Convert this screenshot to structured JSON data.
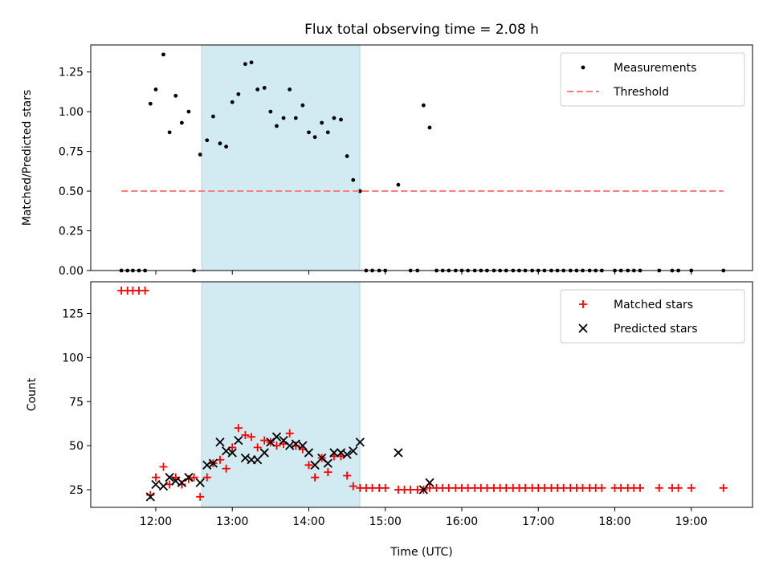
{
  "figure": {
    "title": "Flux total observing time = 2.08 h",
    "xlabel": "Time (UTC)"
  },
  "colors": {
    "shade": "#add8e6",
    "measurement": "#000000",
    "threshold": "#ff7f7f",
    "matched": "#ff0000",
    "predicted": "#000000"
  },
  "chart_data": [
    {
      "type": "scatter",
      "ylabel": "Matched/Predicted stars",
      "xlim_hours": [
        11.15,
        19.8
      ],
      "ylim": [
        0,
        1.42
      ],
      "x_ticks": [
        "12:00",
        "13:00",
        "14:00",
        "15:00",
        "16:00",
        "17:00",
        "18:00",
        "19:00"
      ],
      "y_ticks": [
        "0.00",
        "0.25",
        "0.50",
        "0.75",
        "1.00",
        "1.25"
      ],
      "shaded_interval": [
        "12:36",
        "14:40"
      ],
      "legend": {
        "placement": "top-right",
        "entries": [
          "Measurements",
          "Threshold"
        ]
      },
      "series": [
        {
          "name": "Measurements",
          "marker": "dot",
          "x": [
            11.55,
            11.63,
            11.7,
            11.78,
            11.86,
            11.93,
            12.0,
            12.1,
            12.18,
            12.26,
            12.34,
            12.43,
            12.5,
            12.58,
            12.67,
            12.75,
            12.84,
            12.92,
            13.0,
            13.08,
            13.17,
            13.25,
            13.33,
            13.42,
            13.5,
            13.58,
            13.67,
            13.75,
            13.83,
            13.92,
            14.0,
            14.08,
            14.17,
            14.25,
            14.33,
            14.42,
            14.5,
            14.58,
            14.67,
            14.75,
            14.83,
            14.92,
            15.0,
            15.17,
            15.33,
            15.42,
            15.5,
            15.58,
            15.67,
            15.75,
            15.83,
            15.92,
            16.0,
            16.08,
            16.17,
            16.25,
            16.33,
            16.42,
            16.5,
            16.58,
            16.67,
            16.75,
            16.83,
            16.92,
            17.0,
            17.08,
            17.17,
            17.25,
            17.33,
            17.42,
            17.5,
            17.58,
            17.67,
            17.75,
            17.83,
            18.0,
            18.08,
            18.17,
            18.25,
            18.33,
            18.58,
            18.75,
            18.83,
            19.0,
            19.42
          ],
          "y": [
            0,
            0,
            0,
            0,
            0,
            1.05,
            1.14,
            1.36,
            0.87,
            1.1,
            0.93,
            1.0,
            0,
            0.73,
            0.82,
            0.97,
            0.8,
            0.78,
            1.06,
            1.11,
            1.3,
            1.31,
            1.14,
            1.15,
            1.0,
            0.91,
            0.96,
            1.14,
            0.96,
            1.04,
            0.87,
            0.84,
            0.93,
            0.87,
            0.96,
            0.95,
            0.72,
            0.57,
            0.5,
            0,
            0,
            0,
            0,
            0.54,
            0,
            0,
            1.04,
            0.9,
            0,
            0,
            0,
            0,
            0,
            0,
            0,
            0,
            0,
            0,
            0,
            0,
            0,
            0,
            0,
            0,
            0,
            0,
            0,
            0,
            0,
            0,
            0,
            0,
            0,
            0,
            0,
            0,
            0,
            0,
            0,
            0,
            0,
            0,
            0,
            0,
            0
          ]
        },
        {
          "name": "Threshold",
          "marker": "dashed-line",
          "x": [
            11.55,
            19.42
          ],
          "y": [
            0.5,
            0.5
          ]
        }
      ]
    },
    {
      "type": "scatter",
      "ylabel": "Count",
      "xlim_hours": [
        11.15,
        19.8
      ],
      "ylim": [
        15,
        143
      ],
      "x_ticks": [
        "12:00",
        "13:00",
        "14:00",
        "15:00",
        "16:00",
        "17:00",
        "18:00",
        "19:00"
      ],
      "y_ticks": [
        "25",
        "50",
        "75",
        "100",
        "125"
      ],
      "shaded_interval": [
        "12:36",
        "14:40"
      ],
      "legend": {
        "placement": "top-right",
        "entries": [
          "Matched stars",
          "Predicted stars"
        ]
      },
      "series": [
        {
          "name": "Matched stars",
          "marker": "plus",
          "x": [
            11.55,
            11.63,
            11.7,
            11.78,
            11.86,
            11.93,
            12.0,
            12.1,
            12.18,
            12.26,
            12.34,
            12.43,
            12.5,
            12.58,
            12.67,
            12.75,
            12.84,
            12.92,
            13.0,
            13.08,
            13.17,
            13.25,
            13.33,
            13.42,
            13.5,
            13.58,
            13.67,
            13.75,
            13.83,
            13.92,
            14.0,
            14.08,
            14.17,
            14.25,
            14.33,
            14.42,
            14.5,
            14.58,
            14.67,
            14.75,
            14.83,
            14.92,
            15.0,
            15.17,
            15.25,
            15.33,
            15.42,
            15.5,
            15.58,
            15.67,
            15.75,
            15.83,
            15.92,
            16.0,
            16.08,
            16.17,
            16.25,
            16.33,
            16.42,
            16.5,
            16.58,
            16.67,
            16.75,
            16.83,
            16.92,
            17.0,
            17.08,
            17.17,
            17.25,
            17.33,
            17.42,
            17.5,
            17.58,
            17.67,
            17.75,
            17.83,
            18.0,
            18.08,
            18.17,
            18.25,
            18.33,
            18.58,
            18.75,
            18.83,
            19.0,
            19.42
          ],
          "y": [
            138,
            138,
            138,
            138,
            138,
            22,
            32,
            38,
            28,
            32,
            28,
            31,
            32,
            21,
            32,
            40,
            42,
            37,
            49,
            60,
            56,
            55,
            49,
            53,
            52,
            50,
            51,
            57,
            50,
            48,
            39,
            32,
            43,
            35,
            44,
            44,
            33,
            27,
            26,
            26,
            26,
            26,
            26,
            25,
            25,
            25,
            25,
            25,
            26,
            26,
            26,
            26,
            26,
            26,
            26,
            26,
            26,
            26,
            26,
            26,
            26,
            26,
            26,
            26,
            26,
            26,
            26,
            26,
            26,
            26,
            26,
            26,
            26,
            26,
            26,
            26,
            26,
            26,
            26,
            26,
            26,
            26,
            26,
            26,
            26,
            26
          ]
        },
        {
          "name": "Predicted stars",
          "marker": "x",
          "x": [
            11.93,
            12.0,
            12.1,
            12.18,
            12.26,
            12.34,
            12.43,
            12.58,
            12.67,
            12.75,
            12.84,
            12.92,
            13.0,
            13.08,
            13.17,
            13.25,
            13.33,
            13.42,
            13.5,
            13.58,
            13.67,
            13.75,
            13.83,
            13.92,
            14.0,
            14.08,
            14.17,
            14.25,
            14.33,
            14.42,
            14.5,
            14.58,
            14.67,
            15.17,
            15.5,
            15.58
          ],
          "y": [
            21,
            28,
            27,
            32,
            30,
            29,
            32,
            29,
            39,
            40,
            52,
            47,
            46,
            53,
            43,
            42,
            42,
            46,
            52,
            55,
            53,
            50,
            51,
            50,
            46,
            39,
            43,
            40,
            46,
            46,
            45,
            47,
            52,
            46,
            25,
            29
          ]
        }
      ]
    }
  ]
}
